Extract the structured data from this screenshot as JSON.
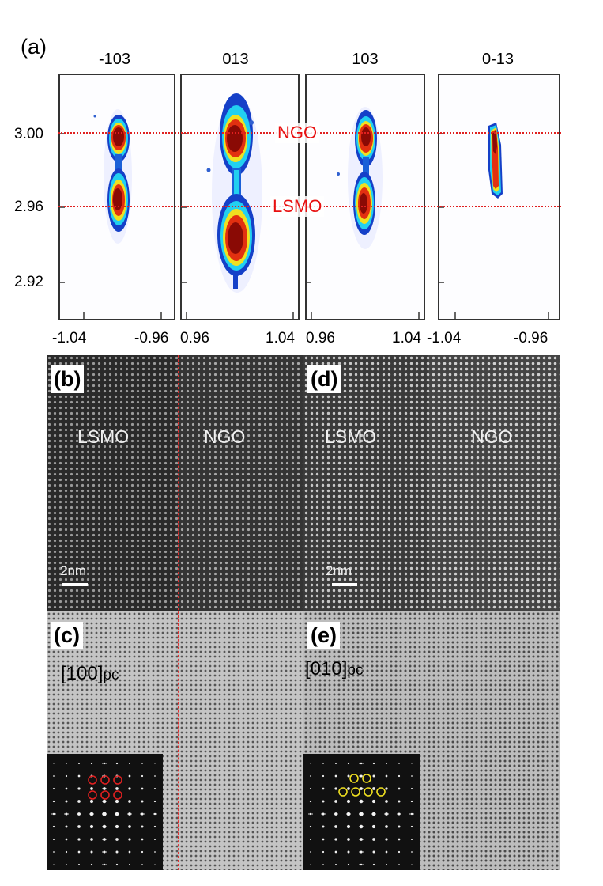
{
  "panel_a": {
    "label": "(a)",
    "columns": [
      "-103",
      "013",
      "103",
      "0-13"
    ],
    "y_ticks": [
      "3.00",
      "2.96",
      "2.92"
    ],
    "x_ticks": [
      [
        "-1.04",
        "-0.96"
      ],
      [
        "0.96",
        "1.04"
      ],
      [
        "0.96",
        "1.04"
      ],
      [
        "-1.04",
        "-0.96"
      ]
    ],
    "peak_labels": {
      "upper": "NGO",
      "lower": "LSMO"
    }
  },
  "panel_b": {
    "label": "(b)",
    "left_region": "LSMO",
    "right_region": "NGO",
    "scale": "2nm"
  },
  "panel_c": {
    "label": "(c)",
    "orientation_main": "[100]",
    "orientation_sub": "pc"
  },
  "panel_d": {
    "label": "(d)",
    "left_region": "LSMO",
    "right_region": "NGO",
    "scale": "2nm"
  },
  "panel_e": {
    "label": "(e)",
    "orientation_main": "[010]",
    "orientation_sub": "pc"
  },
  "colors": {
    "guide_line": "#e02020",
    "circle_c": "#e02020",
    "circle_e": "#f0e020"
  }
}
